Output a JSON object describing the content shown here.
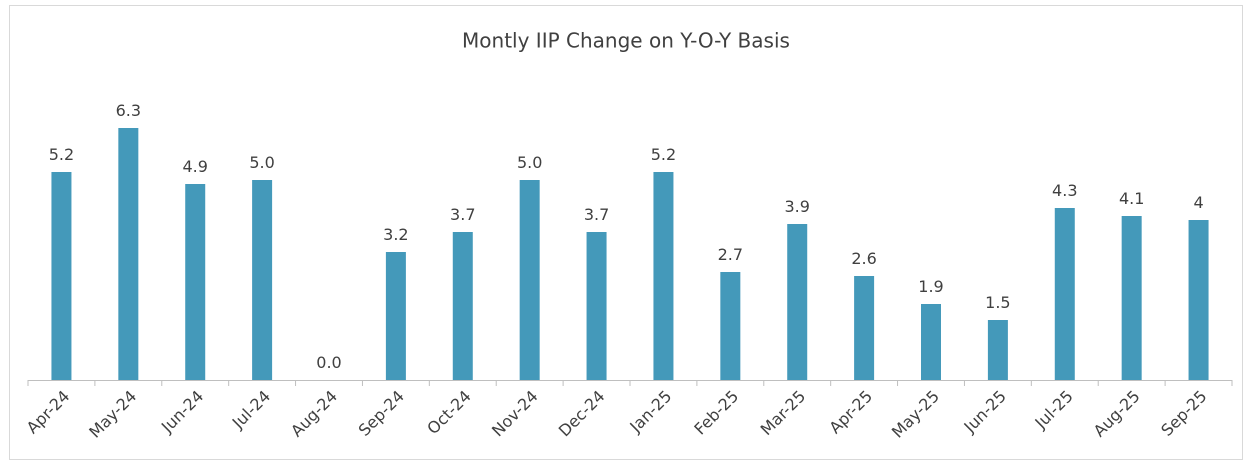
{
  "chart_data": {
    "type": "bar",
    "title": "Montly IIP Change on Y-O-Y Basis",
    "categories": [
      "Apr-24",
      "May-24",
      "Jun-24",
      "Jul-24",
      "Aug-24",
      "Sep-24",
      "Oct-24",
      "Nov-24",
      "Dec-24",
      "Jan-25",
      "Feb-25",
      "Mar-25",
      "Apr-25",
      "May-25",
      "Jun-25",
      "Jul-25",
      "Aug-25",
      "Sep-25"
    ],
    "values": [
      5.2,
      6.3,
      4.9,
      5.0,
      0,
      3.2,
      3.7,
      5.0,
      3.7,
      5.2,
      2.7,
      3.9,
      2.6,
      1.9,
      1.5,
      4.3,
      4.1,
      4
    ],
    "value_labels": [
      "5.2",
      "6.3",
      "4.9",
      "5.0",
      "0.0",
      "3.2",
      "3.7",
      "5.0",
      "3.7",
      "5.2",
      "2.7",
      "3.9",
      "2.6",
      "1.9",
      "1.5",
      "4.3",
      "4.1",
      "4"
    ],
    "color": "#4499ba",
    "ylim": [
      0,
      7
    ]
  }
}
